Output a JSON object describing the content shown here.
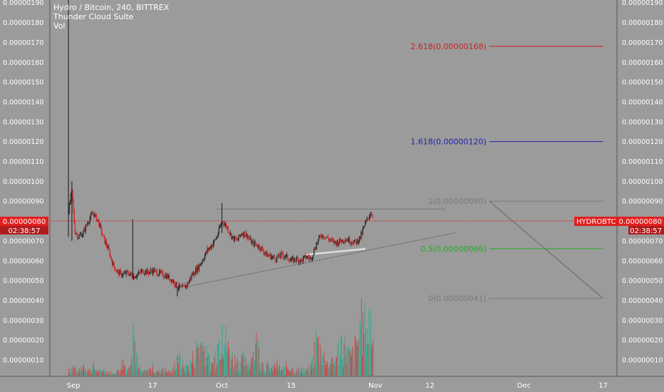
{
  "header": {
    "symbol_line": "Hydro / Bitcoin, 240, BITTREX",
    "indicator_1": "Thunder Cloud Suite",
    "indicator_2": "Vol"
  },
  "price_tag_left": {
    "price": "0.00000080",
    "timer": "02:38:57"
  },
  "price_tag_right": {
    "symbol": "HYDROBTC",
    "price": "0.00000080",
    "timer": "02:38:57"
  },
  "colors": {
    "background": "#9b9b9b",
    "up": "#2b2b2b",
    "down": "#d02a2a",
    "vol_up": "#34a88f",
    "vol_down": "#c44a4a",
    "price_line": "#e02020",
    "fib_2618": "#cc2222",
    "fib_1618": "#2222aa",
    "fib_1": "#7a7a7a",
    "fib_05": "#22aa22",
    "fib_0": "#7a7a7a"
  },
  "chart_data": {
    "type": "candlestick",
    "y_ticks": [
      "0.00000190",
      "0.00000180",
      "0.00000170",
      "0.00000160",
      "0.00000150",
      "0.00000140",
      "0.00000130",
      "0.00000120",
      "0.00000110",
      "0.00000100",
      "0.00000090",
      "0.00000080",
      "0.00000070",
      "0.00000060",
      "0.00000050",
      "0.00000040",
      "0.00000030",
      "0.00000020",
      "0.00000010"
    ],
    "y_tick_values": [
      190,
      180,
      170,
      160,
      150,
      140,
      130,
      120,
      110,
      100,
      90,
      80,
      70,
      60,
      50,
      40,
      30,
      20,
      10
    ],
    "x_ticks": [
      {
        "label": "Sep",
        "day": 0
      },
      {
        "label": "17",
        "day": 16
      },
      {
        "label": "Oct",
        "day": 30
      },
      {
        "label": "15",
        "day": 44
      },
      {
        "label": "Nov",
        "day": 61
      },
      {
        "label": "12",
        "day": 72
      },
      {
        "label": "Dec",
        "day": 91
      },
      {
        "label": "17",
        "day": 107
      }
    ],
    "price_path": [
      [
        -1,
        85
      ],
      [
        -0.3,
        95
      ],
      [
        0.3,
        75
      ],
      [
        1,
        72
      ],
      [
        2,
        74
      ],
      [
        3,
        80
      ],
      [
        4,
        84
      ],
      [
        5,
        80
      ],
      [
        6,
        72
      ],
      [
        7,
        66
      ],
      [
        8,
        58
      ],
      [
        9,
        54
      ],
      [
        10,
        53
      ],
      [
        11,
        54
      ],
      [
        12,
        52
      ],
      [
        13,
        53
      ],
      [
        14,
        55
      ],
      [
        15,
        54
      ],
      [
        16,
        55
      ],
      [
        17,
        54
      ],
      [
        18,
        53
      ],
      [
        19,
        52
      ],
      [
        20,
        50
      ],
      [
        21,
        47
      ],
      [
        22,
        46
      ],
      [
        23,
        48
      ],
      [
        24,
        53
      ],
      [
        25,
        56
      ],
      [
        26,
        60
      ],
      [
        27,
        65
      ],
      [
        28,
        68
      ],
      [
        29,
        72
      ],
      [
        30,
        80
      ],
      [
        31,
        77
      ],
      [
        32,
        72
      ],
      [
        33,
        70
      ],
      [
        34,
        74
      ],
      [
        35,
        73
      ],
      [
        36,
        69
      ],
      [
        37,
        68
      ],
      [
        38,
        66
      ],
      [
        39,
        63
      ],
      [
        40,
        62
      ],
      [
        41,
        61
      ],
      [
        42,
        63
      ],
      [
        43,
        62
      ],
      [
        44,
        60
      ],
      [
        45,
        61
      ],
      [
        46,
        60
      ],
      [
        47,
        62
      ],
      [
        48,
        61
      ],
      [
        49,
        68
      ],
      [
        50,
        73
      ],
      [
        51,
        72
      ],
      [
        52,
        70
      ],
      [
        53,
        69
      ],
      [
        54,
        70
      ],
      [
        55,
        71
      ],
      [
        56,
        70
      ],
      [
        57,
        69
      ],
      [
        58,
        72
      ],
      [
        59,
        79
      ],
      [
        60,
        84
      ],
      [
        60.6,
        83
      ]
    ],
    "spikes": [
      {
        "day": -1,
        "high": 197,
        "low": 72
      },
      {
        "day": -0.3,
        "high": 100,
        "low": 70
      },
      {
        "day": 12,
        "high": 81,
        "low": 51
      },
      {
        "day": 30,
        "high": 89,
        "low": 74
      },
      {
        "day": 21,
        "high": 47,
        "low": 42
      }
    ],
    "volumes": [
      [
        -1,
        4
      ],
      [
        0,
        5
      ],
      [
        1,
        2
      ],
      [
        2,
        6
      ],
      [
        3,
        3
      ],
      [
        4,
        5
      ],
      [
        5,
        2
      ],
      [
        6,
        3
      ],
      [
        7,
        2
      ],
      [
        8,
        1
      ],
      [
        9,
        3
      ],
      [
        10,
        8
      ],
      [
        11,
        3
      ],
      [
        12,
        28
      ],
      [
        13,
        4
      ],
      [
        14,
        2
      ],
      [
        15,
        3
      ],
      [
        16,
        5
      ],
      [
        17,
        2
      ],
      [
        18,
        4
      ],
      [
        19,
        2
      ],
      [
        20,
        3
      ],
      [
        21,
        11
      ],
      [
        22,
        6
      ],
      [
        23,
        5
      ],
      [
        24,
        9
      ],
      [
        25,
        17
      ],
      [
        26,
        18
      ],
      [
        27,
        10
      ],
      [
        28,
        6
      ],
      [
        29,
        17
      ],
      [
        30,
        28
      ],
      [
        31,
        16
      ],
      [
        32,
        10
      ],
      [
        33,
        8
      ],
      [
        34,
        9
      ],
      [
        35,
        6
      ],
      [
        36,
        10
      ],
      [
        37,
        18
      ],
      [
        38,
        7
      ],
      [
        39,
        5
      ],
      [
        40,
        4
      ],
      [
        41,
        6
      ],
      [
        42,
        3
      ],
      [
        43,
        5
      ],
      [
        44,
        4
      ],
      [
        45,
        3
      ],
      [
        46,
        4
      ],
      [
        47,
        3
      ],
      [
        48,
        5
      ],
      [
        49,
        20
      ],
      [
        50,
        14
      ],
      [
        51,
        8
      ],
      [
        52,
        6
      ],
      [
        53,
        10
      ],
      [
        54,
        20
      ],
      [
        55,
        15
      ],
      [
        56,
        10
      ],
      [
        57,
        16
      ],
      [
        58,
        28
      ],
      [
        59,
        25
      ],
      [
        60,
        31
      ],
      [
        60.5,
        18
      ]
    ],
    "volume_scale_max": 200,
    "fib_levels": [
      {
        "label": "2.618(0.00000168)",
        "value": 168,
        "color": "#cc2222"
      },
      {
        "label": "1.618(0.00000120)",
        "value": 120,
        "color": "#2222aa"
      },
      {
        "label": "1(0.00000090)",
        "value": 90,
        "color": "#7a7a7a"
      },
      {
        "label": "0.5(0.00000066)",
        "value": 66,
        "color": "#22aa22"
      },
      {
        "label": "0(0.00000041)",
        "value": 41,
        "color": "#7a7a7a"
      }
    ],
    "fib_start_day": 84,
    "fib_end_day": 107,
    "fib_diagonal": [
      [
        84,
        90
      ],
      [
        107,
        41
      ]
    ],
    "trendline_dotted_support": [
      [
        21,
        46
      ],
      [
        77,
        74
      ]
    ],
    "resistance_dotted": [
      [
        29,
        86
      ],
      [
        75,
        86
      ]
    ],
    "white_channel": [
      [
        47,
        63
      ],
      [
        59,
        66
      ]
    ],
    "current_price": 80
  }
}
